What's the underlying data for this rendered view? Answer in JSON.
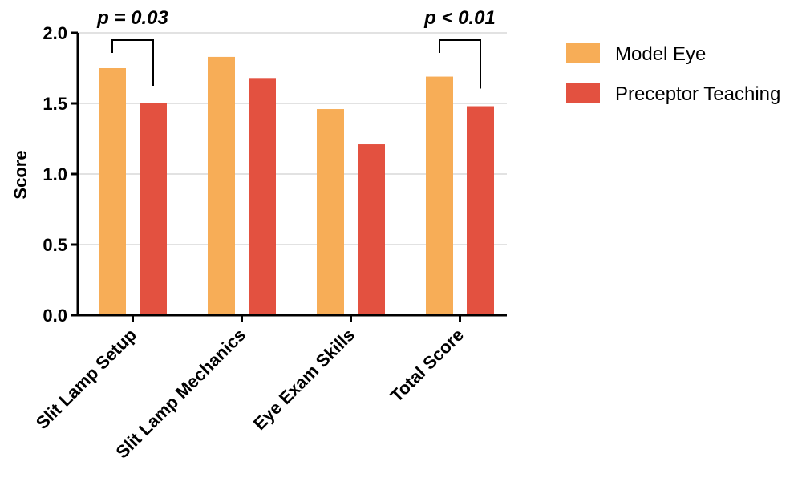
{
  "chart_data": {
    "type": "bar",
    "categories": [
      "Slit Lamp Setup",
      "Slit Lamp Mechanics",
      "Eye Exam Skills",
      "Total Score"
    ],
    "series": [
      {
        "name": "Model Eye",
        "values": [
          1.75,
          1.83,
          1.46,
          1.69
        ],
        "color": "#f7ad57"
      },
      {
        "name": "Preceptor Teaching",
        "values": [
          1.5,
          1.68,
          1.21,
          1.48
        ],
        "color": "#e35140"
      }
    ],
    "ylabel": "Score",
    "xlabel": "",
    "ylim": [
      0,
      2.0
    ],
    "yticks": [
      "0.0",
      "0.5",
      "1.0",
      "1.5",
      "2.0"
    ],
    "grid": "horizontal",
    "legend_position": "top-right",
    "annotations": [
      {
        "text": "p = 0.03",
        "category_index": 0
      },
      {
        "text": "p < 0.01",
        "category_index": 3
      }
    ]
  }
}
